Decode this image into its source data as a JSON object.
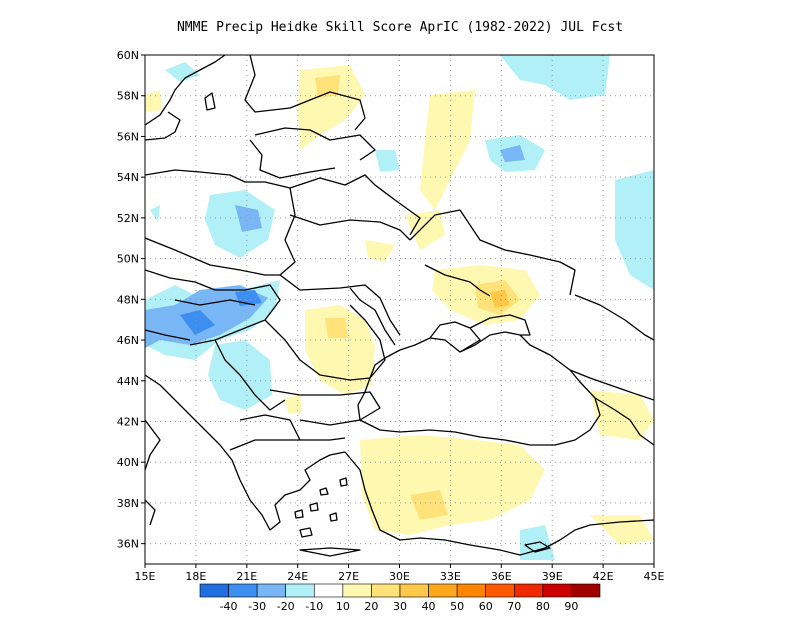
{
  "title": "NMME Precip Heidke Skill Score AprIC (1982-2022) JUL Fcst",
  "map": {
    "lon_range": [
      15,
      45
    ],
    "lat_range": [
      35,
      60
    ],
    "x_ticks": [
      "15E",
      "18E",
      "21E",
      "24E",
      "27E",
      "30E",
      "33E",
      "36E",
      "39E",
      "42E",
      "45E"
    ],
    "y_ticks": [
      "36N",
      "38N",
      "40N",
      "42N",
      "44N",
      "46N",
      "48N",
      "50N",
      "52N",
      "54N",
      "56N",
      "58N",
      "60N"
    ],
    "grid": "dotted"
  },
  "colorbar": {
    "colors": [
      "#1f6fe0",
      "#3c8ef0",
      "#78b6f5",
      "#b2f0f8",
      "#ffffff",
      "#fff8b0",
      "#ffe27a",
      "#ffc848",
      "#ffa81e",
      "#ff8400",
      "#ff5a00",
      "#f02a00",
      "#cc0000",
      "#a00000"
    ],
    "labels": [
      "-40",
      "-30",
      "-20",
      "-10",
      "10",
      "20",
      "30",
      "40",
      "50",
      "60",
      "70",
      "80",
      "90"
    ]
  }
}
